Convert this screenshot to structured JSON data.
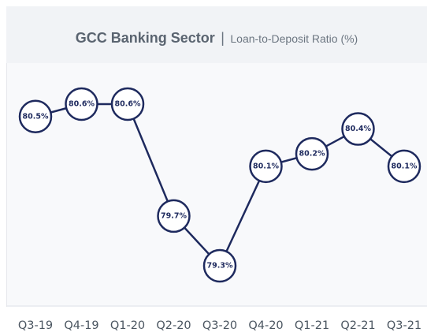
{
  "chart_data": {
    "type": "line",
    "title": "GCC Banking Sector",
    "separator": "|",
    "subtitle": "Loan-to-Deposit Ratio (%)",
    "categories": [
      "Q3-19",
      "Q4-19",
      "Q1-20",
      "Q2-20",
      "Q3-20",
      "Q4-20",
      "Q1-21",
      "Q2-21",
      "Q3-21"
    ],
    "series": [
      {
        "values": [
          80.5,
          80.6,
          80.6,
          79.7,
          79.3,
          80.1,
          80.2,
          80.4,
          80.1
        ],
        "labels": [
          "80.5%",
          "80.6%",
          "80.6%",
          "79.7%",
          "79.3%",
          "80.1%",
          "80.2%",
          "80.4%",
          "80.1%"
        ]
      }
    ],
    "line_color": "#1e2a5e",
    "marker_fill": "#ffffff",
    "grid": false
  }
}
